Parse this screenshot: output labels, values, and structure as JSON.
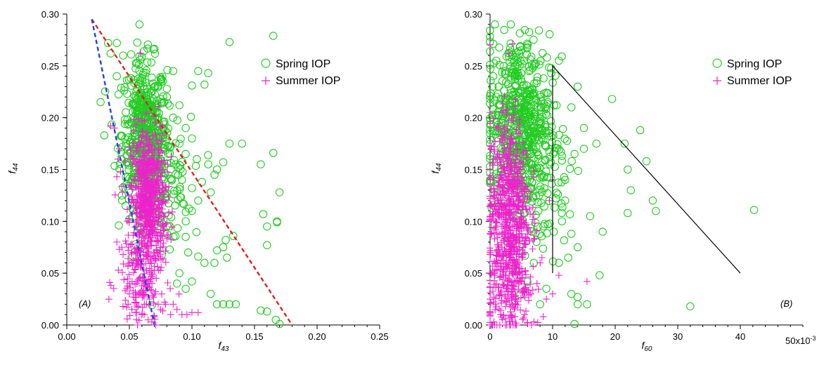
{
  "chart_data": [
    {
      "type": "scatter",
      "panel_label": "(A)",
      "xlabel_main": "f",
      "xlabel_sub": "43",
      "ylabel_main": "f",
      "ylabel_sub": "44",
      "xlim": [
        0,
        0.25
      ],
      "ylim": [
        0,
        0.3
      ],
      "xticks": [
        "0.00",
        "0.05",
        "0.10",
        "0.15",
        "0.20",
        "0.25"
      ],
      "yticks": [
        "0.00",
        "0.05",
        "0.10",
        "0.15",
        "0.20",
        "0.25",
        "0.30"
      ],
      "legend_position": "top-right",
      "legend": [
        "Spring IOP",
        "Summer IOP"
      ],
      "colors": {
        "spring": "#22cc22",
        "summer": "#ee22cc",
        "red_line": "#dd2222",
        "blue_line": "#2244dd"
      },
      "reference_lines": [
        {
          "style": "red-dashed",
          "x": [
            0.02,
            0.18
          ],
          "y": [
            0.295,
            0.0
          ]
        },
        {
          "style": "blue-dashed",
          "x": [
            0.02,
            0.07
          ],
          "y": [
            0.295,
            0.0
          ]
        }
      ],
      "series": [
        {
          "name": "Spring IOP",
          "marker": "open-circle",
          "points": [
            [
              0.13,
              0.273
            ],
            [
              0.165,
              0.279
            ],
            [
              0.105,
              0.245
            ],
            [
              0.113,
              0.243
            ],
            [
              0.11,
              0.232
            ],
            [
              0.1,
              0.231
            ],
            [
              0.13,
              0.175
            ],
            [
              0.14,
              0.175
            ],
            [
              0.155,
              0.155
            ],
            [
              0.165,
              0.166
            ],
            [
              0.17,
              0.128
            ],
            [
              0.157,
              0.107
            ],
            [
              0.16,
              0.095
            ],
            [
              0.168,
              0.1
            ],
            [
              0.168,
              0.099
            ],
            [
              0.16,
              0.077
            ],
            [
              0.133,
              0.086
            ],
            [
              0.127,
              0.082
            ],
            [
              0.125,
              0.075
            ],
            [
              0.12,
              0.072
            ],
            [
              0.118,
              0.06
            ],
            [
              0.128,
              0.065
            ],
            [
              0.11,
              0.06
            ],
            [
              0.105,
              0.066
            ],
            [
              0.13,
              0.02
            ],
            [
              0.135,
              0.02
            ],
            [
              0.125,
              0.02
            ],
            [
              0.12,
              0.02
            ],
            [
              0.155,
              0.014
            ],
            [
              0.16,
              0.013
            ],
            [
              0.167,
              0.005
            ],
            [
              0.17,
              0.001
            ],
            [
              0.115,
              0.03
            ],
            [
              0.1,
              0.042
            ],
            [
              0.095,
              0.035
            ],
            [
              0.12,
              0.15
            ],
            [
              0.118,
              0.145
            ],
            [
              0.125,
              0.157
            ],
            [
              0.113,
              0.155
            ],
            [
              0.108,
              0.138
            ],
            [
              0.115,
              0.128
            ],
            [
              0.105,
              0.12
            ],
            [
              0.1,
              0.11
            ],
            [
              0.095,
              0.1
            ],
            [
              0.03,
              0.183
            ],
            [
              0.027,
              0.215
            ],
            [
              0.04,
              0.24
            ],
            [
              0.045,
              0.26
            ],
            [
              0.035,
              0.262
            ],
            [
              0.033,
              0.272
            ],
            [
              0.04,
              0.272
            ],
            [
              0.085,
              0.245
            ],
            [
              0.08,
              0.228
            ],
            [
              0.08,
              0.22
            ],
            [
              0.09,
              0.212
            ],
            [
              0.085,
              0.2
            ],
            [
              0.095,
              0.19
            ],
            [
              0.1,
              0.18
            ],
            [
              0.09,
              0.175
            ],
            [
              0.095,
              0.165
            ],
            [
              0.087,
              0.155
            ],
            [
              0.092,
              0.14
            ],
            [
              0.1,
              0.132
            ],
            [
              0.044,
              0.125
            ],
            [
              0.047,
              0.115
            ],
            [
              0.05,
              0.102
            ],
            [
              0.095,
              0.085
            ],
            [
              0.097,
              0.07
            ],
            [
              0.09,
              0.05
            ],
            [
              0.088,
              0.04
            ]
          ]
        },
        {
          "name": "Summer IOP",
          "marker": "plus",
          "points": [
            [
              0.059,
              0.262
            ],
            [
              0.035,
              0.192
            ],
            [
              0.038,
              0.19
            ],
            [
              0.042,
              0.17
            ],
            [
              0.041,
              0.16
            ],
            [
              0.043,
              0.148
            ],
            [
              0.04,
              0.143
            ],
            [
              0.04,
              0.08
            ],
            [
              0.044,
              0.075
            ],
            [
              0.042,
              0.073
            ],
            [
              0.047,
              0.081
            ],
            [
              0.049,
              0.072
            ],
            [
              0.052,
              0.07
            ],
            [
              0.045,
              0.068
            ],
            [
              0.05,
              0.04
            ],
            [
              0.048,
              0.035
            ],
            [
              0.05,
              0.03
            ],
            [
              0.053,
              0.033
            ],
            [
              0.056,
              0.04
            ],
            [
              0.058,
              0.03
            ],
            [
              0.049,
              0.02
            ],
            [
              0.052,
              0.015
            ],
            [
              0.055,
              0.012
            ],
            [
              0.06,
              0.01
            ],
            [
              0.062,
              0.02
            ],
            [
              0.066,
              0.025
            ],
            [
              0.07,
              0.03
            ],
            [
              0.073,
              0.02
            ],
            [
              0.075,
              0.015
            ],
            [
              0.079,
              0.02
            ],
            [
              0.083,
              0.01
            ],
            [
              0.088,
              0.015
            ],
            [
              0.085,
              0.02
            ],
            [
              0.092,
              0.01
            ],
            [
              0.096,
              0.01
            ],
            [
              0.1,
              0.012
            ],
            [
              0.105,
              0.012
            ],
            [
              0.065,
              0.005
            ],
            [
              0.068,
              0.003
            ],
            [
              0.07,
              0.008
            ]
          ]
        }
      ],
      "dense_clusters": [
        {
          "series": "Spring IOP",
          "center": [
            0.062,
            0.185
          ],
          "spread": [
            0.009,
            0.035
          ],
          "count": 450
        },
        {
          "series": "Spring IOP",
          "center": [
            0.075,
            0.14
          ],
          "spread": [
            0.012,
            0.03
          ],
          "count": 150
        },
        {
          "series": "Summer IOP",
          "center": [
            0.065,
            0.12
          ],
          "spread": [
            0.007,
            0.035
          ],
          "count": 650
        },
        {
          "series": "Summer IOP",
          "center": [
            0.06,
            0.04
          ],
          "spread": [
            0.01,
            0.025
          ],
          "count": 120
        }
      ]
    },
    {
      "type": "scatter",
      "panel_label": "(B)",
      "xlabel_main": "f",
      "xlabel_sub": "60",
      "ylabel_main": "f",
      "ylabel_sub": "44",
      "x_multiplier_label": "50x10",
      "x_multiplier_exp": "-3",
      "xlim": [
        0,
        50
      ],
      "ylim": [
        0,
        0.3
      ],
      "xticks": [
        "0",
        "10",
        "20",
        "30",
        "40"
      ],
      "yticks": [
        "0.00",
        "0.05",
        "0.10",
        "0.15",
        "0.20",
        "0.25",
        "0.30"
      ],
      "legend_position": "top-right",
      "legend": [
        "Spring IOP",
        "Summer IOP"
      ],
      "colors": {
        "spring": "#22cc22",
        "summer": "#ee22cc",
        "line": "#000000"
      },
      "reference_lines": [
        {
          "style": "solid",
          "x": [
            10,
            10,
            40
          ],
          "y": [
            0.05,
            0.25,
            0.05
          ]
        }
      ],
      "series": [
        {
          "name": "Spring IOP",
          "marker": "open-circle",
          "points": [
            [
              11,
              0.255
            ],
            [
              13,
              0.21
            ],
            [
              14,
              0.23
            ],
            [
              15,
              0.19
            ],
            [
              17,
              0.175
            ],
            [
              19.5,
              0.218
            ],
            [
              21.5,
              0.175
            ],
            [
              22,
              0.15
            ],
            [
              22.5,
              0.13
            ],
            [
              24,
              0.188
            ],
            [
              25,
              0.158
            ],
            [
              26,
              0.12
            ],
            [
              26.5,
              0.11
            ],
            [
              22,
              0.108
            ],
            [
              42.2,
              0.111
            ],
            [
              18,
              0.09
            ],
            [
              17.5,
              0.048
            ],
            [
              32,
              0.018
            ],
            [
              13.5,
              0.001
            ],
            [
              14,
              0.02
            ],
            [
              15.5,
              0.02
            ],
            [
              14,
              0.027
            ],
            [
              13,
              0.03
            ],
            [
              11,
              0.06
            ],
            [
              12.5,
              0.065
            ],
            [
              16,
              0.105
            ],
            [
              15,
              0.17
            ],
            [
              13.5,
              0.165
            ],
            [
              12,
              0.12
            ],
            [
              13,
              0.088
            ],
            [
              14,
              0.075
            ],
            [
              11.5,
              0.1
            ],
            [
              12,
              0.14
            ],
            [
              8,
              0.02
            ],
            [
              9,
              0.035
            ],
            [
              7,
              0.06
            ],
            [
              6,
              0.27
            ],
            [
              5,
              0.265
            ],
            [
              3,
              0.262
            ],
            [
              1,
              0.255
            ],
            [
              0.5,
              0.24
            ],
            [
              7,
              0.25
            ]
          ]
        },
        {
          "name": "Summer IOP",
          "marker": "plus",
          "points": [
            [
              3,
              0.262
            ],
            [
              11,
              0.048
            ],
            [
              15.5,
              0.042
            ],
            [
              10,
              0.03
            ],
            [
              9,
              0.025
            ],
            [
              8.5,
              0.008
            ],
            [
              7,
              0.003
            ],
            [
              6,
              0.002
            ],
            [
              5.5,
              0.01
            ],
            [
              10,
              0.14
            ],
            [
              9.5,
              0.12
            ],
            [
              8,
              0.06
            ],
            [
              7.5,
              0.04
            ],
            [
              2,
              0.005
            ],
            [
              4,
              0.008
            ]
          ]
        }
      ],
      "dense_clusters": [
        {
          "series": "Spring IOP",
          "center": [
            4.5,
            0.2
          ],
          "spread": [
            2.5,
            0.04
          ],
          "count": 500
        },
        {
          "series": "Spring IOP",
          "center": [
            7.5,
            0.15
          ],
          "spread": [
            2.5,
            0.04
          ],
          "count": 150
        },
        {
          "series": "Summer IOP",
          "center": [
            3,
            0.11
          ],
          "spread": [
            1.6,
            0.045
          ],
          "count": 650
        },
        {
          "series": "Summer IOP",
          "center": [
            3,
            0.03
          ],
          "spread": [
            2.0,
            0.02
          ],
          "count": 150
        }
      ]
    }
  ]
}
